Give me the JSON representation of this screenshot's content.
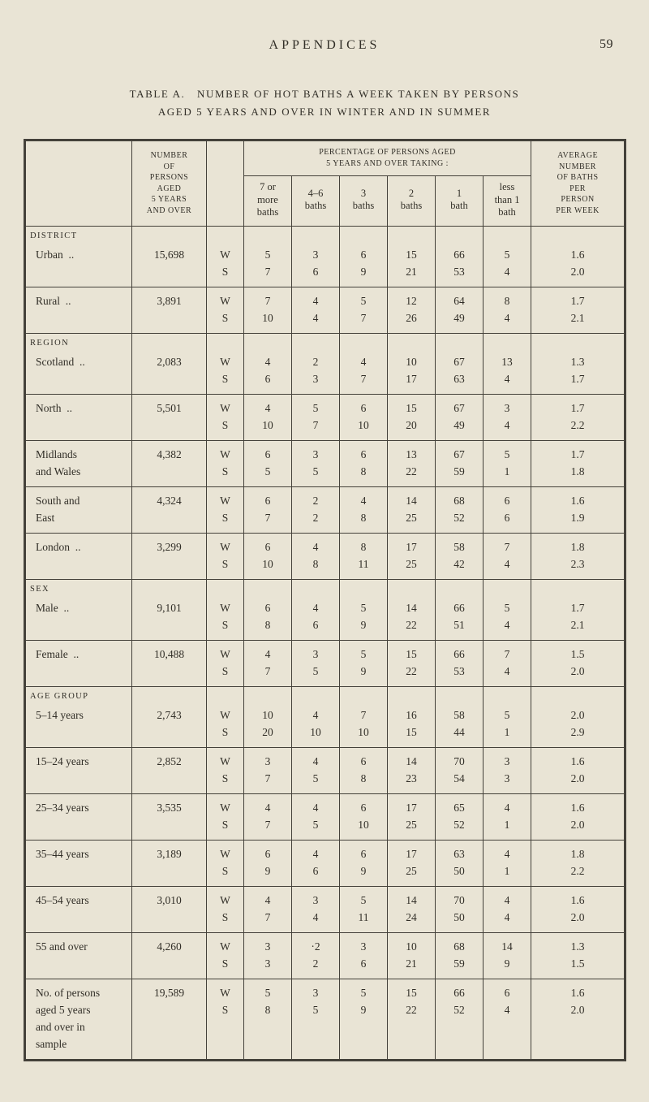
{
  "page": {
    "running_head": "APPENDICES",
    "page_number": "59",
    "title_line_1": "TABLE A. NUMBER OF HOT BATHS A WEEK TAKEN BY PERSONS",
    "title_line_2": "AGED 5 YEARS AND OVER IN WINTER AND IN SUMMER"
  },
  "table": {
    "header": {
      "persons_lines": [
        "NUMBER",
        "OF",
        "PERSONS",
        "AGED",
        "5 YEARS",
        "AND OVER"
      ],
      "percentage_title": "PERCENTAGE OF PERSONS AGED\n5 YEARS AND OVER TAKING :",
      "bath_columns": [
        [
          "7 or",
          "more",
          "baths"
        ],
        [
          "4–6",
          "baths"
        ],
        [
          "3",
          "baths"
        ],
        [
          "2",
          "baths"
        ],
        [
          "1",
          "bath"
        ],
        [
          "less",
          "than 1",
          "bath"
        ]
      ],
      "average_lines": [
        "AVERAGE",
        "NUMBER",
        "OF BATHS",
        "PER",
        "PERSON",
        "PER WEEK"
      ]
    },
    "row_indicators": [
      "W",
      "S"
    ],
    "sections": [
      {
        "heading": "DISTRICT",
        "rows": [
          {
            "label_lines": [
              "Urban .."
            ],
            "persons": "15,698",
            "w": [
              "5",
              "3",
              "6",
              "15",
              "66",
              "5",
              "1.6"
            ],
            "s": [
              "7",
              "6",
              "9",
              "21",
              "53",
              "4",
              "2.0"
            ]
          },
          {
            "label_lines": [
              "Rural .."
            ],
            "persons": "3,891",
            "w": [
              "7",
              "4",
              "5",
              "12",
              "64",
              "8",
              "1.7"
            ],
            "s": [
              "10",
              "4",
              "7",
              "26",
              "49",
              "4",
              "2.1"
            ]
          }
        ]
      },
      {
        "heading": "REGION",
        "rows": [
          {
            "label_lines": [
              "Scotland .."
            ],
            "persons": "2,083",
            "w": [
              "4",
              "2",
              "4",
              "10",
              "67",
              "13",
              "1.3"
            ],
            "s": [
              "6",
              "3",
              "7",
              "17",
              "63",
              "4",
              "1.7"
            ]
          },
          {
            "label_lines": [
              "North .."
            ],
            "persons": "5,501",
            "w": [
              "4",
              "5",
              "6",
              "15",
              "67",
              "3",
              "1.7"
            ],
            "s": [
              "10",
              "7",
              "10",
              "20",
              "49",
              "4",
              "2.2"
            ]
          },
          {
            "label_lines": [
              "Midlands",
              "and Wales"
            ],
            "persons": "4,382",
            "w": [
              "6",
              "3",
              "6",
              "13",
              "67",
              "5",
              "1.7"
            ],
            "s": [
              "5",
              "5",
              "8",
              "22",
              "59",
              "1",
              "1.8"
            ]
          },
          {
            "label_lines": [
              "South and",
              "East"
            ],
            "persons": "4,324",
            "w": [
              "6",
              "2",
              "4",
              "14",
              "68",
              "6",
              "1.6"
            ],
            "s": [
              "7",
              "2",
              "8",
              "25",
              "52",
              "6",
              "1.9"
            ]
          },
          {
            "label_lines": [
              "London .."
            ],
            "persons": "3,299",
            "w": [
              "6",
              "4",
              "8",
              "17",
              "58",
              "7",
              "1.8"
            ],
            "s": [
              "10",
              "8",
              "11",
              "25",
              "42",
              "4",
              "2.3"
            ]
          }
        ]
      },
      {
        "heading": "SEX",
        "rows": [
          {
            "label_lines": [
              "Male .."
            ],
            "persons": "9,101",
            "w": [
              "6",
              "4",
              "5",
              "14",
              "66",
              "5",
              "1.7"
            ],
            "s": [
              "8",
              "6",
              "9",
              "22",
              "51",
              "4",
              "2.1"
            ]
          },
          {
            "label_lines": [
              "Female .."
            ],
            "persons": "10,488",
            "w": [
              "4",
              "3",
              "5",
              "15",
              "66",
              "7",
              "1.5"
            ],
            "s": [
              "7",
              "5",
              "9",
              "22",
              "53",
              "4",
              "2.0"
            ]
          }
        ]
      },
      {
        "heading": "AGE GROUP",
        "rows": [
          {
            "label_lines": [
              "5–14 years"
            ],
            "persons": "2,743",
            "w": [
              "10",
              "4",
              "7",
              "16",
              "58",
              "5",
              "2.0"
            ],
            "s": [
              "20",
              "10",
              "10",
              "15",
              "44",
              "1",
              "2.9"
            ]
          },
          {
            "label_lines": [
              "15–24 years"
            ],
            "persons": "2,852",
            "w": [
              "3",
              "4",
              "6",
              "14",
              "70",
              "3",
              "1.6"
            ],
            "s": [
              "7",
              "5",
              "8",
              "23",
              "54",
              "3",
              "2.0"
            ]
          },
          {
            "label_lines": [
              "25–34 years"
            ],
            "persons": "3,535",
            "w": [
              "4",
              "4",
              "6",
              "17",
              "65",
              "4",
              "1.6"
            ],
            "s": [
              "7",
              "5",
              "10",
              "25",
              "52",
              "1",
              "2.0"
            ]
          },
          {
            "label_lines": [
              "35–44 years"
            ],
            "persons": "3,189",
            "w": [
              "6",
              "4",
              "6",
              "17",
              "63",
              "4",
              "1.8"
            ],
            "s": [
              "9",
              "6",
              "9",
              "25",
              "50",
              "1",
              "2.2"
            ]
          },
          {
            "label_lines": [
              "45–54 years"
            ],
            "persons": "3,010",
            "w": [
              "4",
              "3",
              "5",
              "14",
              "70",
              "4",
              "1.6"
            ],
            "s": [
              "7",
              "4",
              "11",
              "24",
              "50",
              "4",
              "2.0"
            ]
          },
          {
            "label_lines": [
              "55 and over"
            ],
            "persons": "4,260",
            "w": [
              "3",
              "·2",
              "3",
              "10",
              "68",
              "14",
              "1.3"
            ],
            "s": [
              "3",
              "2",
              "6",
              "21",
              "59",
              "9",
              "1.5"
            ]
          }
        ]
      },
      {
        "heading": null,
        "rows": [
          {
            "label_lines": [
              "No. of persons",
              "aged 5 years",
              "and over in",
              "sample"
            ],
            "persons": "19,589",
            "w": [
              "5",
              "3",
              "5",
              "15",
              "66",
              "6",
              "1.6"
            ],
            "s": [
              "8",
              "5",
              "9",
              "22",
              "52",
              "4",
              "2.0"
            ]
          }
        ]
      }
    ]
  }
}
